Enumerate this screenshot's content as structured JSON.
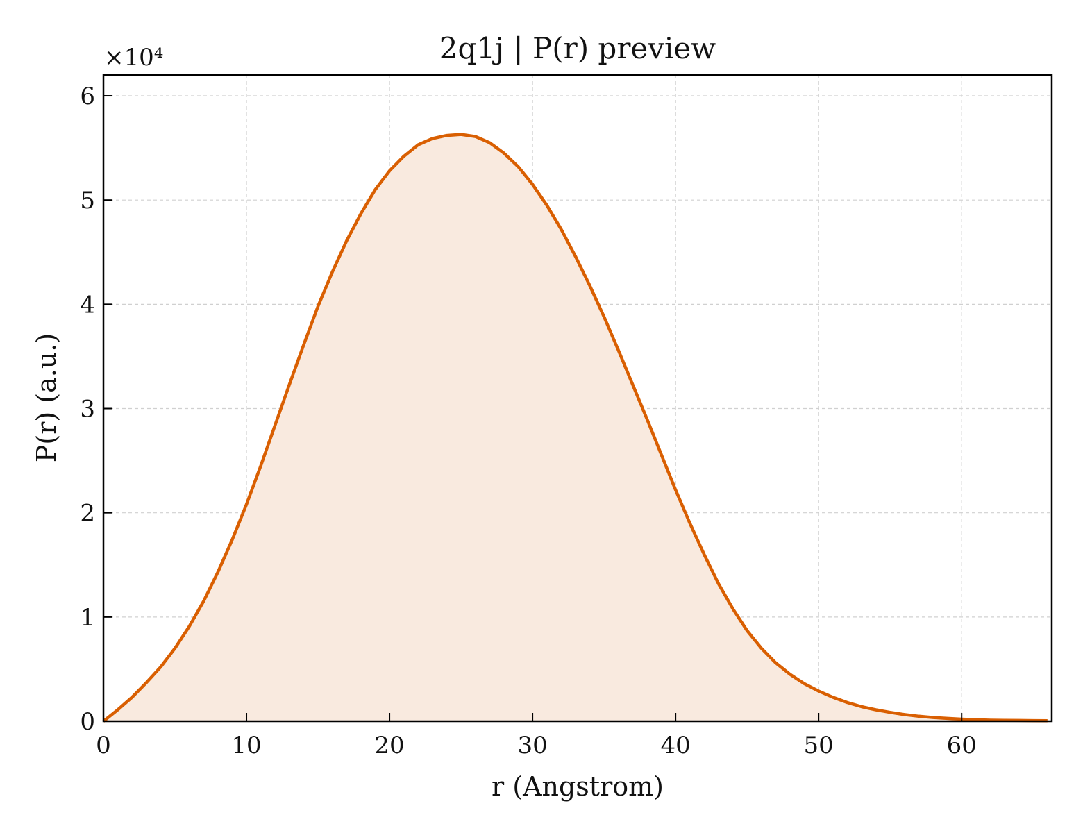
{
  "chart_data": {
    "type": "area",
    "title": "2q1j | P(r) preview",
    "xlabel": "r (Angstrom)",
    "ylabel": "P(r) (a.u.)",
    "y_scale_label": "×10⁴",
    "y_scale_factor": 10000,
    "xlim": [
      0,
      66.3
    ],
    "ylim": [
      0,
      62000
    ],
    "x_ticks": [
      0,
      10,
      20,
      30,
      40,
      50,
      60
    ],
    "x_tick_labels": [
      "0",
      "10",
      "20",
      "30",
      "40",
      "50",
      "60"
    ],
    "y_ticks": [
      0,
      10000,
      20000,
      30000,
      40000,
      50000,
      60000
    ],
    "y_tick_labels": [
      "0",
      "1",
      "2",
      "3",
      "4",
      "5",
      "6"
    ],
    "grid": true,
    "line_color": "#d95f02",
    "fill_color": "#f9eadf",
    "series": [
      {
        "x": [
          0,
          1,
          2,
          3,
          4,
          5,
          6,
          7,
          8,
          9,
          10,
          11,
          12,
          13,
          14,
          15,
          16,
          17,
          18,
          19,
          20,
          21,
          22,
          23,
          24,
          25,
          26,
          27,
          28,
          29,
          30,
          31,
          32,
          33,
          34,
          35,
          36,
          37,
          38,
          39,
          40,
          41,
          42,
          43,
          44,
          45,
          46,
          47,
          48,
          49,
          50,
          51,
          52,
          53,
          54,
          55,
          56,
          57,
          58,
          59,
          60,
          61,
          62,
          63,
          64,
          65,
          66
        ],
        "y": [
          0,
          1100,
          2300,
          3700,
          5200,
          7000,
          9100,
          11500,
          14300,
          17400,
          20800,
          24500,
          28400,
          32300,
          36100,
          39800,
          43100,
          46100,
          48700,
          51000,
          52800,
          54200,
          55300,
          55900,
          56200,
          56300,
          56100,
          55500,
          54500,
          53200,
          51500,
          49500,
          47200,
          44600,
          41800,
          38800,
          35600,
          32300,
          29000,
          25600,
          22200,
          19000,
          16000,
          13200,
          10800,
          8700,
          7000,
          5600,
          4500,
          3600,
          2900,
          2300,
          1800,
          1400,
          1100,
          850,
          640,
          480,
          360,
          270,
          200,
          140,
          100,
          80,
          70,
          60,
          50
        ]
      }
    ]
  }
}
